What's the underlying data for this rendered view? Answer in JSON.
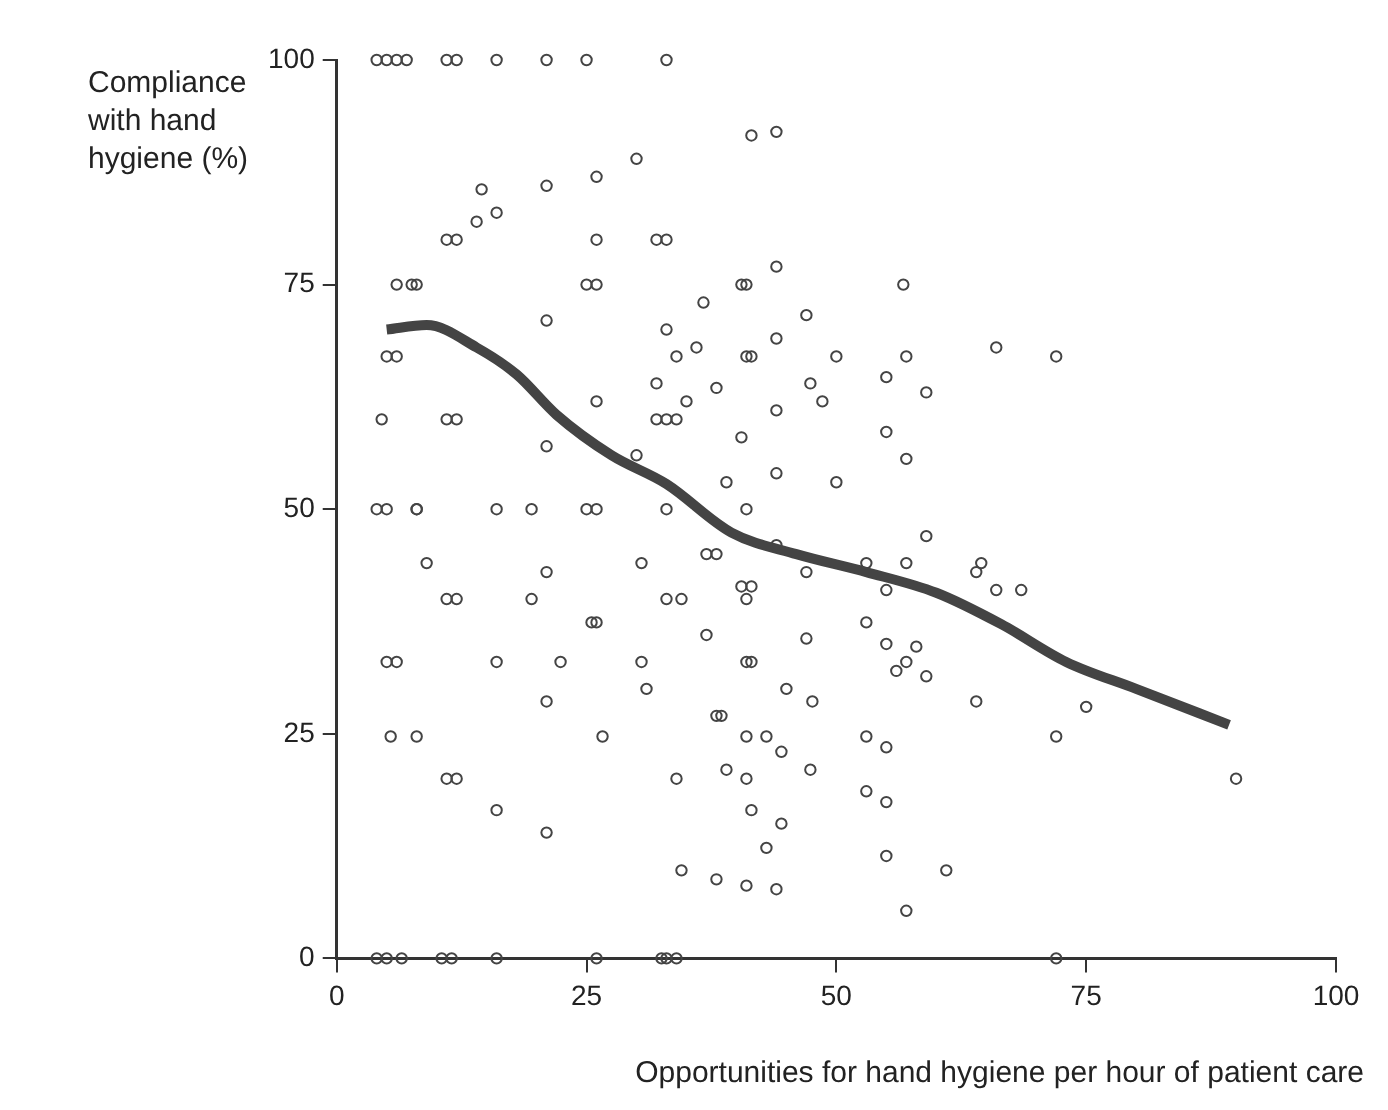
{
  "chart_data": {
    "type": "scatter",
    "xlabel": "Opportunities for hand hygiene per hour of patient care",
    "ylabel": "Compliance with hand hygiene (%)",
    "xlim": [
      0,
      100
    ],
    "ylim": [
      0,
      100
    ],
    "xticks": [
      0,
      25,
      50,
      75,
      100
    ],
    "yticks": [
      0,
      25,
      50,
      75,
      100
    ],
    "grid": false,
    "legend": false,
    "series": [
      {
        "type": "scatter",
        "color": "#444444",
        "marker": "circle",
        "x": [
          4,
          5,
          6,
          7,
          11,
          12,
          16,
          21,
          25,
          33,
          30,
          26,
          14.5,
          21,
          16,
          14,
          11,
          12,
          26,
          32,
          33,
          6,
          7.5,
          8,
          25,
          26,
          21,
          33,
          5,
          6,
          34,
          32,
          26,
          4.5,
          11,
          12,
          32,
          33,
          34,
          21,
          30,
          4,
          5,
          8,
          8,
          16,
          19.5,
          25,
          26,
          33,
          41.5,
          44,
          44,
          40.5,
          41,
          56.7,
          36.7,
          47,
          36,
          44,
          41,
          41.5,
          50,
          57,
          66,
          72,
          35,
          38,
          47.4,
          48.6,
          55,
          59,
          44,
          40.5,
          55,
          57,
          39,
          44,
          50,
          41,
          59,
          37,
          38,
          44,
          57,
          47,
          53,
          55,
          64,
          64.5,
          66,
          68.5,
          40.5,
          41.5,
          41,
          33,
          34.5,
          37,
          53,
          47,
          55,
          58,
          57,
          56,
          59,
          41,
          41.5,
          45,
          38,
          38.5,
          47.6,
          64,
          75,
          72,
          41,
          43,
          53,
          55,
          44.5,
          39,
          47.4,
          34,
          41,
          90,
          41.5,
          53,
          55,
          44.5,
          43,
          55,
          34.5,
          38,
          41,
          44,
          61,
          57,
          33,
          34,
          72,
          9,
          21,
          30.5,
          11,
          12,
          19.5,
          25.5,
          26,
          5,
          6,
          16,
          22.4,
          30.5,
          31,
          21,
          5.4,
          8,
          26.6,
          11,
          12,
          16,
          21,
          4,
          5,
          6.5,
          10.5,
          11.5,
          16,
          26,
          32.5
        ],
        "values": [
          100,
          100,
          100,
          100,
          100,
          100,
          100,
          100,
          100,
          100,
          89,
          87,
          85.6,
          86,
          83,
          82,
          80,
          80,
          80,
          80,
          80,
          75,
          75,
          75,
          75,
          75,
          71,
          70,
          67,
          67,
          67,
          64,
          62,
          60,
          60,
          60,
          60,
          60,
          60,
          57,
          56,
          50,
          50,
          50,
          50,
          50,
          50,
          50,
          50,
          50,
          91.6,
          92,
          77,
          75,
          75,
          75,
          73,
          71.6,
          68,
          69,
          67,
          67,
          67,
          67,
          68,
          67,
          62,
          63.5,
          64,
          62,
          64.7,
          63,
          61,
          58,
          58.6,
          55.6,
          53,
          54,
          53,
          50,
          47,
          45,
          45,
          46,
          44,
          43,
          44,
          41,
          43,
          44,
          41,
          41,
          41.4,
          41.4,
          40,
          40,
          40,
          36,
          37.4,
          35.6,
          35,
          34.7,
          33,
          32,
          31.4,
          33,
          33,
          30,
          27,
          27,
          28.6,
          28.6,
          28,
          24.7,
          24.7,
          24.7,
          24.7,
          23.5,
          23,
          21,
          21,
          20,
          20,
          20,
          16.5,
          18.6,
          17.4,
          15,
          12.3,
          11.4,
          9.8,
          8.8,
          8.1,
          7.7,
          9.8,
          5.3,
          0,
          0,
          0,
          44,
          43,
          44,
          40,
          40,
          40,
          37.4,
          37.4,
          33,
          33,
          33,
          33,
          33,
          30,
          28.6,
          24.7,
          24.7,
          24.7,
          20,
          20,
          16.5,
          14,
          0,
          0,
          0,
          0,
          0,
          0,
          0,
          0
        ]
      },
      {
        "type": "line",
        "color": "#444444",
        "marker": "none",
        "line_style": "solid",
        "x": [
          5,
          9,
          14,
          18,
          22,
          27.5,
          33,
          39.5,
          46,
          53,
          60,
          66.5,
          73,
          80,
          89.3
        ],
        "values": [
          70,
          70.5,
          68,
          65,
          60.5,
          56,
          52.8,
          47.4,
          45,
          43,
          40.7,
          37.2,
          33,
          30,
          26
        ]
      }
    ]
  }
}
